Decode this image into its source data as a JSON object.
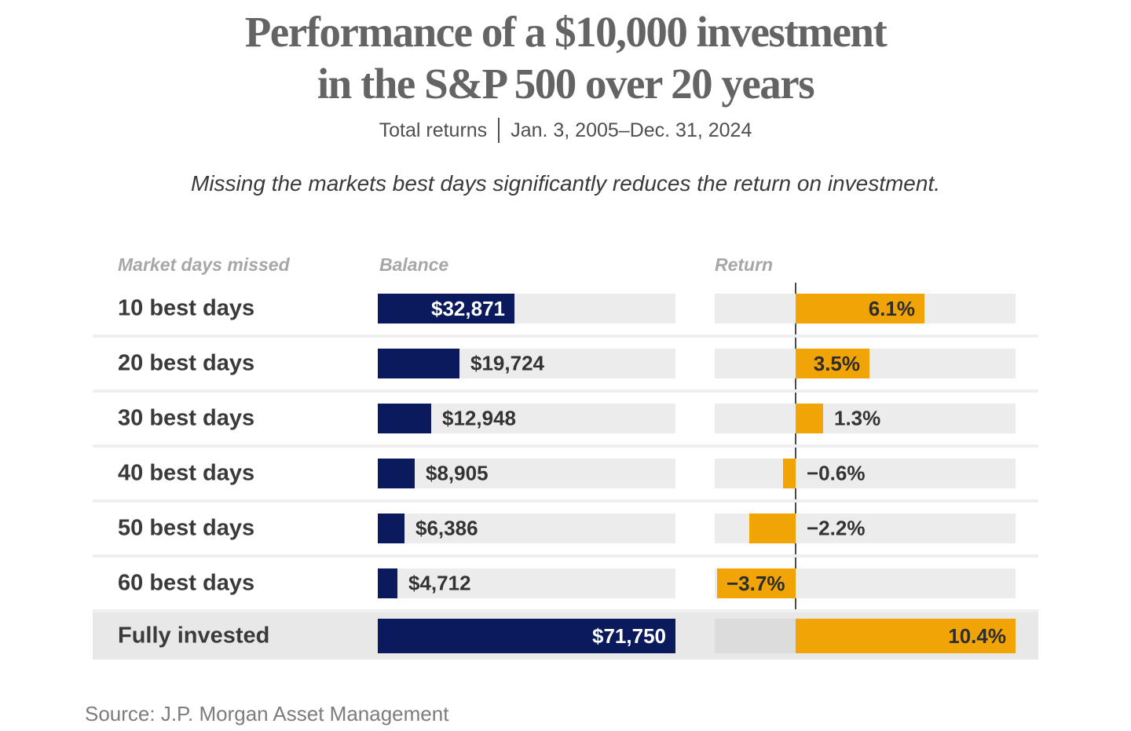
{
  "header": {
    "title_line1": "Performance of a $10,000 investment",
    "title_line2": "in the S&P 500 over 20 years",
    "subtitle_label": "Total returns",
    "subtitle_dates": "Jan. 3, 2005–Dec. 31, 2024",
    "tagline": "Missing the markets best days significantly reduces the return on investment."
  },
  "table": {
    "columns": [
      "Market days missed",
      "Balance",
      "Return"
    ]
  },
  "footer": {
    "source": "Source: J.P. Morgan Asset Management"
  },
  "colors": {
    "navy": "#0a1a5c",
    "orange": "#f0a405",
    "track_gray": "#ececec",
    "highlight_row": "#e8e8e8",
    "zero_line": "#4a4a4a",
    "title_gray": "#646464"
  },
  "chart_data": {
    "type": "bar",
    "orientation": "horizontal",
    "title": "Performance of a $10,000 investment in the S&P 500 over 20 years",
    "subtitle": "Total returns | Jan. 3, 2005–Dec. 31, 2024",
    "annotation": "Missing the markets best days significantly reduces the return on investment.",
    "source": "Source: J.P. Morgan Asset Management",
    "categories": [
      "10 best days",
      "20 best days",
      "30 best days",
      "40 best days",
      "50 best days",
      "60 best days",
      "Fully invested"
    ],
    "series": [
      {
        "name": "Balance",
        "values": [
          32871,
          19724,
          12948,
          8905,
          6386,
          4712,
          71750
        ]
      },
      {
        "name": "Return",
        "values": [
          6.1,
          3.5,
          1.3,
          -0.6,
          -2.2,
          -3.7,
          10.4
        ]
      }
    ],
    "balance_axis_max": 71750,
    "return_axis": {
      "min": -3.8,
      "max": 10.4,
      "zero_line": true
    },
    "legend": "none",
    "grid": "off",
    "rows": [
      {
        "label": "10 best days",
        "balance": 32871,
        "balance_label": "$32,871",
        "return": 6.1,
        "return_label": "6.1%",
        "balance_label_inside": true,
        "return_label_inside": true,
        "highlighted": false
      },
      {
        "label": "20 best days",
        "balance": 19724,
        "balance_label": "$19,724",
        "return": 3.5,
        "return_label": "3.5%",
        "balance_label_inside": false,
        "return_label_inside": true,
        "highlighted": false
      },
      {
        "label": "30 best days",
        "balance": 12948,
        "balance_label": "$12,948",
        "return": 1.3,
        "return_label": "1.3%",
        "balance_label_inside": false,
        "return_label_inside": false,
        "highlighted": false
      },
      {
        "label": "40 best days",
        "balance": 8905,
        "balance_label": "$8,905",
        "return": -0.6,
        "return_label": "−0.6%",
        "balance_label_inside": false,
        "return_label_inside": false,
        "highlighted": false
      },
      {
        "label": "50 best days",
        "balance": 6386,
        "balance_label": "$6,386",
        "return": -2.2,
        "return_label": "−2.2%",
        "balance_label_inside": false,
        "return_label_inside": false,
        "highlighted": false
      },
      {
        "label": "60 best days",
        "balance": 4712,
        "balance_label": "$4,712",
        "return": -3.7,
        "return_label": "−3.7%",
        "balance_label_inside": false,
        "return_label_inside": true,
        "highlighted": false
      },
      {
        "label": "Fully invested",
        "balance": 71750,
        "balance_label": "$71,750",
        "return": 10.4,
        "return_label": "10.4%",
        "balance_label_inside": true,
        "return_label_inside": true,
        "highlighted": true
      }
    ]
  }
}
